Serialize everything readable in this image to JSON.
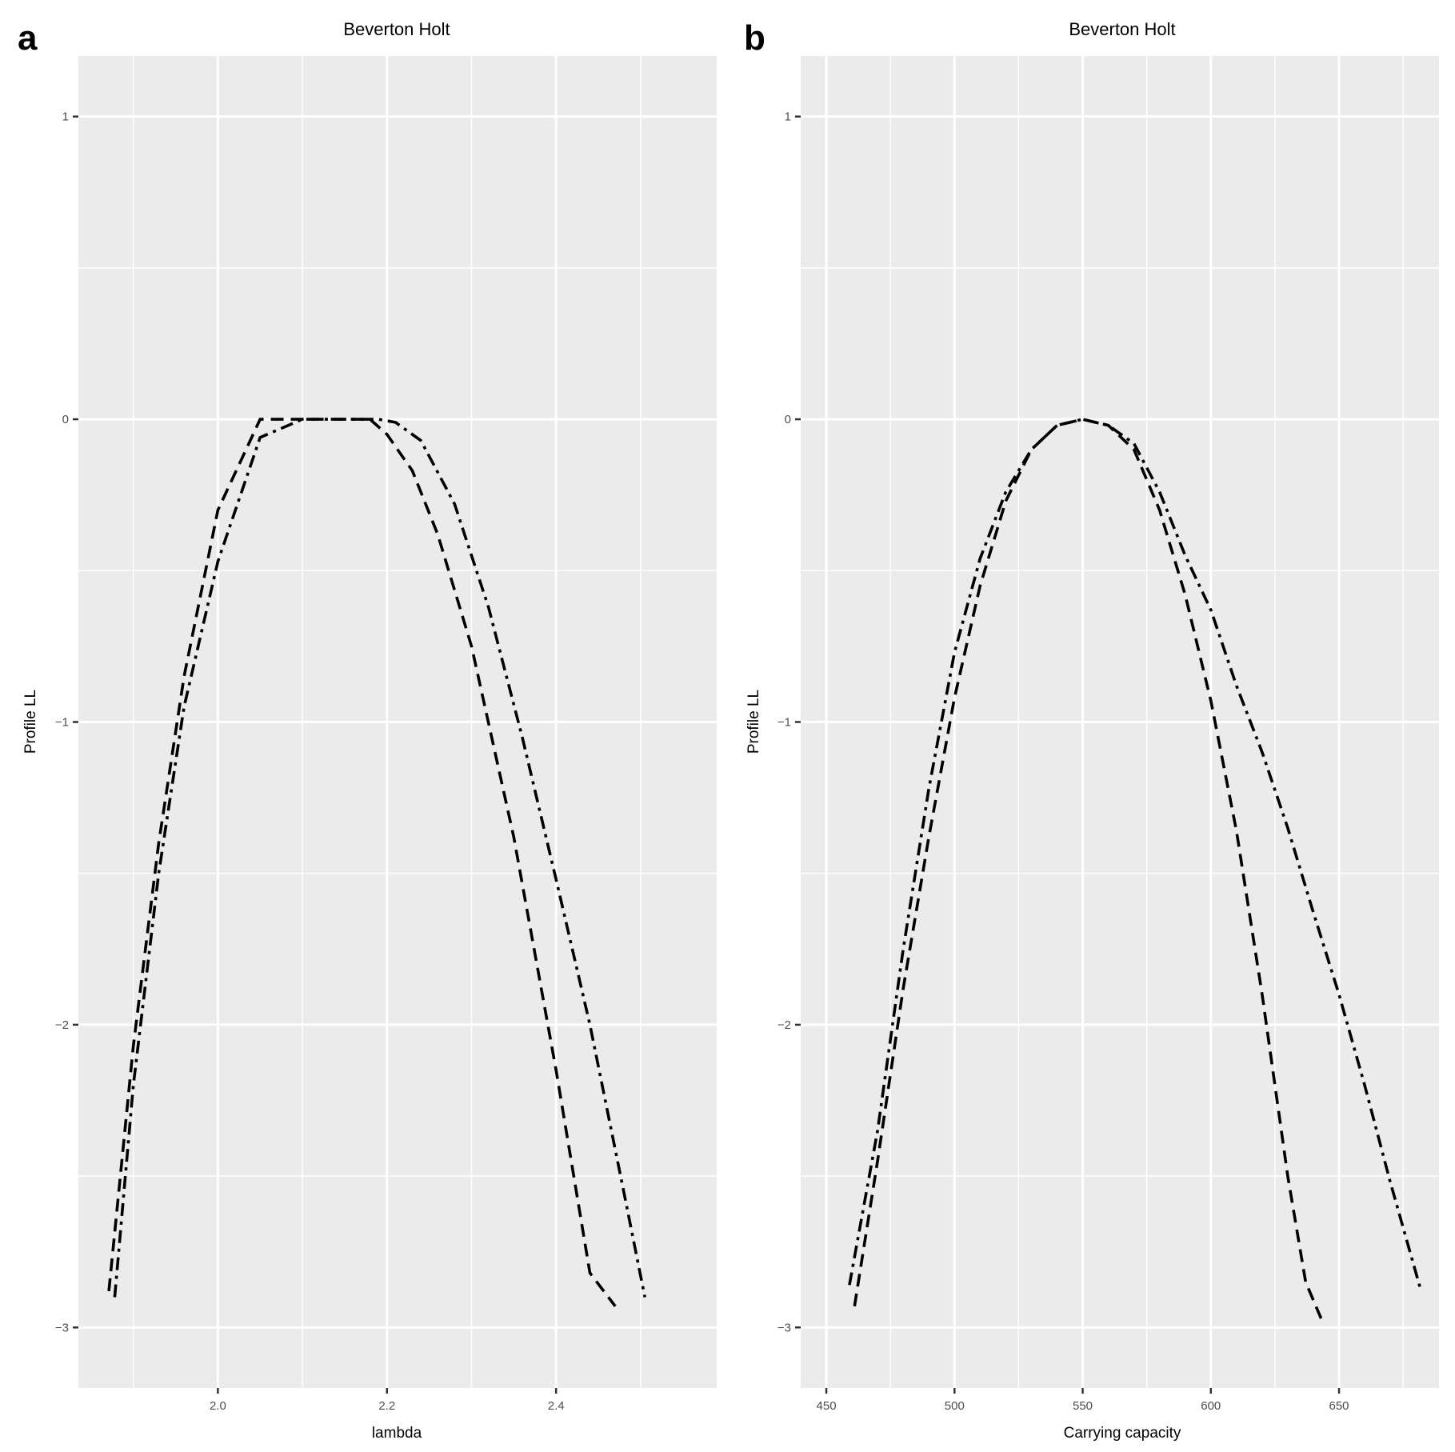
{
  "chart_data": [
    {
      "type": "line",
      "panel_letter": "a",
      "title": "Beverton Holt",
      "xlabel": "lambda",
      "ylabel": "Profile LL",
      "xlim": [
        1.835,
        2.59
      ],
      "ylim": [
        -3.2,
        1.2
      ],
      "x_major_ticks": [
        2.0,
        2.2,
        2.4
      ],
      "x_major_tick_labels": [
        "2.0",
        "2.2",
        "2.4"
      ],
      "x_minor_ticks": [
        1.9,
        2.1,
        2.3,
        2.5
      ],
      "y_major_ticks": [
        1,
        0,
        -1,
        -2,
        -3
      ],
      "y_major_tick_labels": [
        "1",
        "0",
        "−1",
        "−2",
        "−3"
      ],
      "y_minor_ticks": [
        0.5,
        -0.5,
        -1.5,
        -2.5
      ],
      "series": [
        {
          "name": "dashed",
          "line_style": "dashed",
          "x": [
            1.871,
            1.9,
            1.93,
            1.96,
            2.0,
            2.05,
            2.1,
            2.13,
            2.16,
            2.18,
            2.2,
            2.23,
            2.26,
            2.3,
            2.35,
            2.4,
            2.44,
            2.47
          ],
          "y": [
            -2.88,
            -2.07,
            -1.4,
            -0.85,
            -0.3,
            0.0,
            0.0,
            -0.0,
            -0.0,
            0.0,
            -0.05,
            -0.17,
            -0.38,
            -0.75,
            -1.38,
            -2.15,
            -2.82,
            -2.93
          ]
        },
        {
          "name": "dash-dot",
          "line_style": "dashdot",
          "x": [
            1.878,
            1.9,
            1.93,
            1.96,
            2.0,
            2.05,
            2.1,
            2.14,
            2.17,
            2.19,
            2.21,
            2.24,
            2.28,
            2.32,
            2.36,
            2.4,
            2.44,
            2.48,
            2.505
          ],
          "y": [
            -2.9,
            -2.2,
            -1.5,
            -0.95,
            -0.47,
            -0.06,
            0.0,
            -0.0,
            -0.0,
            0.0,
            -0.01,
            -0.07,
            -0.28,
            -0.62,
            -1.05,
            -1.52,
            -2.0,
            -2.55,
            -2.9
          ]
        }
      ]
    },
    {
      "type": "line",
      "panel_letter": "b",
      "title": "Beverton Holt",
      "xlabel": "Carrying capacity",
      "ylabel": "Profile LL",
      "xlim": [
        440,
        689
      ],
      "ylim": [
        -3.2,
        1.2
      ],
      "x_major_ticks": [
        450,
        500,
        550,
        600,
        650
      ],
      "x_major_tick_labels": [
        "450",
        "500",
        "550",
        "600",
        "650"
      ],
      "x_minor_ticks": [
        475,
        525,
        575,
        625,
        675
      ],
      "y_major_ticks": [
        1,
        0,
        -1,
        -2,
        -3
      ],
      "y_major_tick_labels": [
        "1",
        "0",
        "−1",
        "−2",
        "−3"
      ],
      "y_minor_ticks": [
        0.5,
        -0.5,
        -1.5,
        -2.5
      ],
      "series": [
        {
          "name": "dashed",
          "line_style": "dashed",
          "x": [
            461,
            470,
            480,
            490,
            500,
            510,
            520,
            530,
            540,
            550,
            560,
            570,
            580,
            590,
            600,
            610,
            620,
            630,
            637,
            643
          ],
          "y": [
            -2.93,
            -2.45,
            -1.88,
            -1.38,
            -0.92,
            -0.55,
            -0.27,
            -0.1,
            -0.02,
            0.0,
            -0.02,
            -0.1,
            -0.3,
            -0.58,
            -0.93,
            -1.36,
            -1.9,
            -2.5,
            -2.85,
            -2.97
          ]
        },
        {
          "name": "dash-dot",
          "line_style": "dashdot",
          "x": [
            459,
            470,
            480,
            490,
            500,
            510,
            520,
            530,
            540,
            550,
            560,
            570,
            580,
            590,
            600,
            610,
            620,
            630,
            640,
            650,
            660,
            670,
            682
          ],
          "y": [
            -2.86,
            -2.35,
            -1.75,
            -1.22,
            -0.77,
            -0.46,
            -0.24,
            -0.1,
            -0.02,
            0.0,
            -0.02,
            -0.08,
            -0.24,
            -0.45,
            -0.63,
            -0.88,
            -1.1,
            -1.35,
            -1.63,
            -1.9,
            -2.2,
            -2.52,
            -2.88
          ]
        }
      ]
    }
  ]
}
